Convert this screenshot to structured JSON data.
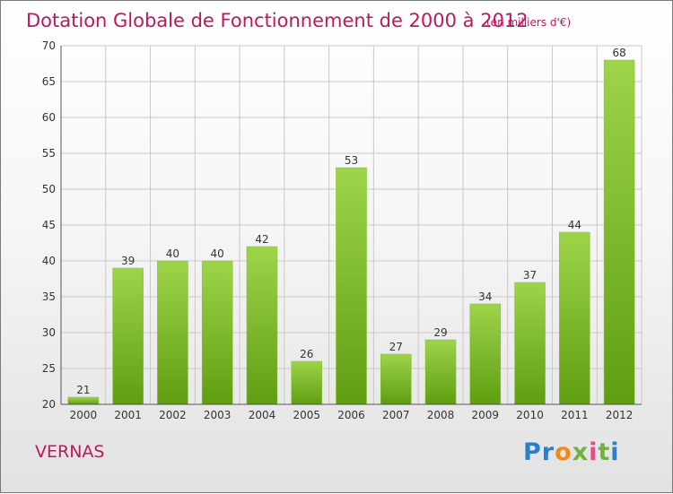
{
  "location_label": "VERNAS",
  "brand": {
    "name": "Proxiti",
    "letter_colors": [
      "#2a7fc8",
      "#2a7fc8",
      "#f08a1c",
      "#6db33f",
      "#e84b8a",
      "#6db33f",
      "#2a7fc8"
    ]
  },
  "colors": {
    "title": "#c0175f",
    "bar_light": "#9ed44a",
    "bar_dark": "#5f9e10",
    "grid": "#c8c8c8",
    "axis": "#555555"
  },
  "chart_data": {
    "type": "bar",
    "title": "Dotation Globale de Fonctionnement de 2000 à 2012",
    "subtitle": "(en milliers d'€)",
    "xlabel": "",
    "ylabel": "",
    "categories": [
      "2000",
      "2001",
      "2002",
      "2003",
      "2004",
      "2005",
      "2006",
      "2007",
      "2008",
      "2009",
      "2010",
      "2011",
      "2012"
    ],
    "values": [
      21,
      39,
      40,
      40,
      42,
      26,
      53,
      27,
      29,
      34,
      37,
      44,
      68
    ],
    "ylim": [
      20,
      70
    ],
    "yticks": [
      20,
      25,
      30,
      35,
      40,
      45,
      50,
      55,
      60,
      65,
      70
    ],
    "grid": true,
    "legend": "none"
  }
}
